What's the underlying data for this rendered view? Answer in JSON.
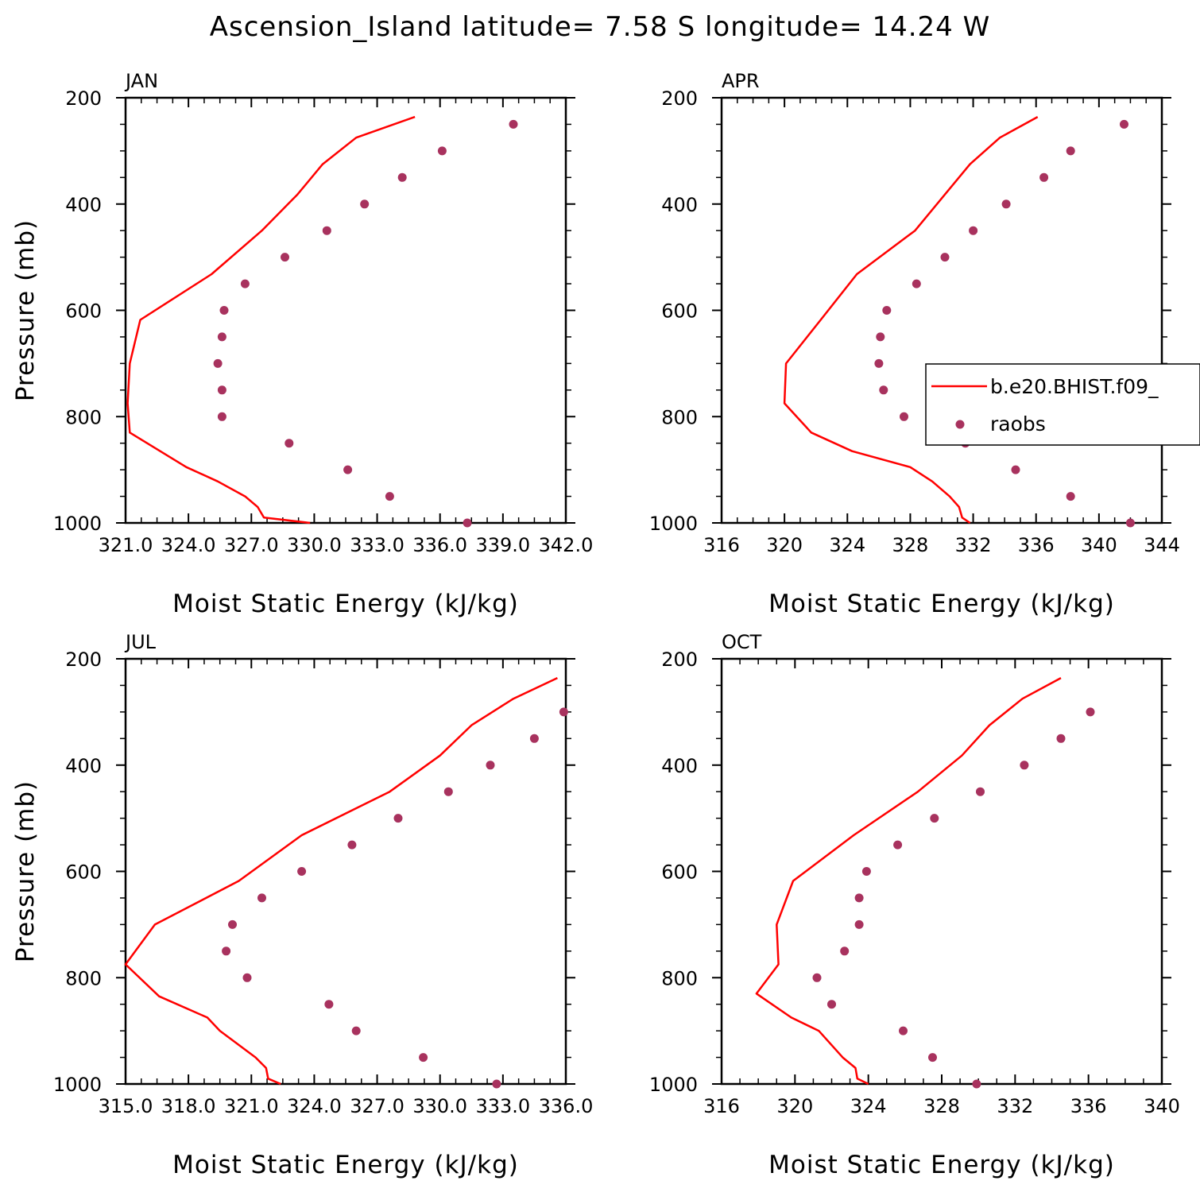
{
  "figure": {
    "title": "Ascension_Island  latitude= 7.58 S longitude= 14.24 W"
  },
  "legend": {
    "entries": [
      {
        "label": "b.e20.BHIST.f09_",
        "kind": "line",
        "color": "#ff0000"
      },
      {
        "label": "raobs",
        "kind": "marker",
        "color": "#a8325e"
      }
    ]
  },
  "colors": {
    "model_line": "#ff0000",
    "raobs_marker": "#a8325e"
  },
  "chart_data": [
    {
      "type": "scatter",
      "panel_label": "JAN",
      "xlabel": "Moist Static Energy (kJ/kg)",
      "ylabel": "Pressure (mb)",
      "xlim": [
        321.0,
        342.0
      ],
      "ylim": [
        1000,
        200
      ],
      "x_ticks": [
        321.0,
        324.0,
        327.0,
        330.0,
        333.0,
        336.0,
        339.0,
        342.0
      ],
      "x_tick_labels": [
        "321.0",
        "324.0",
        "327.0",
        "330.0",
        "333.0",
        "336.0",
        "339.0",
        "342.0"
      ],
      "y_ticks": [
        200,
        400,
        600,
        800,
        1000
      ],
      "y_tick_labels": [
        "200",
        "400",
        "600",
        "800",
        "1000"
      ],
      "series": [
        {
          "name": "b.e20.BHIST.f09_",
          "style": "line",
          "points": [
            [
              334.8,
              236
            ],
            [
              332.0,
              275
            ],
            [
              330.4,
              325
            ],
            [
              329.2,
              382
            ],
            [
              327.5,
              450
            ],
            [
              325.1,
              532
            ],
            [
              321.7,
              618
            ],
            [
              321.2,
              700
            ],
            [
              321.1,
              775
            ],
            [
              321.2,
              830
            ],
            [
              323.9,
              895
            ],
            [
              325.4,
              922
            ],
            [
              326.7,
              950
            ],
            [
              327.3,
              970
            ],
            [
              327.6,
              990
            ],
            [
              329.8,
              1000
            ]
          ]
        },
        {
          "name": "raobs",
          "style": "marker",
          "points": [
            [
              339.5,
              250
            ],
            [
              336.1,
              300
            ],
            [
              334.2,
              350
            ],
            [
              332.4,
              400
            ],
            [
              330.6,
              450
            ],
            [
              328.6,
              500
            ],
            [
              326.7,
              550
            ],
            [
              325.7,
              600
            ],
            [
              325.6,
              650
            ],
            [
              325.4,
              700
            ],
            [
              325.6,
              750
            ],
            [
              325.6,
              800
            ],
            [
              328.8,
              850
            ],
            [
              331.6,
              900
            ],
            [
              333.6,
              950
            ],
            [
              337.3,
              1000
            ]
          ]
        }
      ]
    },
    {
      "type": "scatter",
      "panel_label": "APR",
      "xlabel": "Moist Static Energy (kJ/kg)",
      "ylabel": "",
      "xlim": [
        316,
        344
      ],
      "ylim": [
        1000,
        200
      ],
      "x_ticks": [
        316,
        320,
        324,
        328,
        332,
        336,
        340,
        344
      ],
      "x_tick_labels": [
        "316",
        "320",
        "324",
        "328",
        "332",
        "336",
        "340",
        "344"
      ],
      "y_ticks": [
        200,
        400,
        600,
        800,
        1000
      ],
      "y_tick_labels": [
        "200",
        "400",
        "600",
        "800",
        "1000"
      ],
      "series": [
        {
          "name": "b.e20.BHIST.f09_",
          "style": "line",
          "points": [
            [
              336.1,
              236
            ],
            [
              333.7,
              275
            ],
            [
              331.8,
              325
            ],
            [
              330.2,
              382
            ],
            [
              328.3,
              450
            ],
            [
              324.6,
              532
            ],
            [
              322.3,
              618
            ],
            [
              320.1,
              700
            ],
            [
              320.0,
              775
            ],
            [
              321.7,
              830
            ],
            [
              324.3,
              865
            ],
            [
              328.0,
              895
            ],
            [
              329.4,
              922
            ],
            [
              330.5,
              950
            ],
            [
              331.1,
              970
            ],
            [
              331.3,
              990
            ],
            [
              331.8,
              1000
            ]
          ]
        },
        {
          "name": "raobs",
          "style": "marker",
          "points": [
            [
              341.6,
              250
            ],
            [
              338.2,
              300
            ],
            [
              336.5,
              350
            ],
            [
              334.1,
              400
            ],
            [
              332.0,
              450
            ],
            [
              330.2,
              500
            ],
            [
              328.4,
              550
            ],
            [
              326.5,
              600
            ],
            [
              326.1,
              650
            ],
            [
              326.0,
              700
            ],
            [
              326.3,
              750
            ],
            [
              327.6,
              800
            ],
            [
              331.5,
              850
            ],
            [
              334.7,
              900
            ],
            [
              338.2,
              950
            ],
            [
              342.0,
              1000
            ]
          ]
        }
      ]
    },
    {
      "type": "scatter",
      "panel_label": "JUL",
      "xlabel": "Moist Static Energy (kJ/kg)",
      "ylabel": "Pressure (mb)",
      "xlim": [
        315.0,
        336.0
      ],
      "ylim": [
        1000,
        200
      ],
      "x_ticks": [
        315.0,
        318.0,
        321.0,
        324.0,
        327.0,
        330.0,
        333.0,
        336.0
      ],
      "x_tick_labels": [
        "315.0",
        "318.0",
        "321.0",
        "324.0",
        "327.0",
        "330.0",
        "333.0",
        "336.0"
      ],
      "y_ticks": [
        200,
        400,
        600,
        800,
        1000
      ],
      "y_tick_labels": [
        "200",
        "400",
        "600",
        "800",
        "1000"
      ],
      "series": [
        {
          "name": "b.e20.BHIST.f09_",
          "style": "line",
          "points": [
            [
              335.6,
              236
            ],
            [
              333.5,
              275
            ],
            [
              331.5,
              325
            ],
            [
              330.0,
              382
            ],
            [
              327.6,
              450
            ],
            [
              323.4,
              532
            ],
            [
              320.4,
              618
            ],
            [
              316.4,
              700
            ],
            [
              315.0,
              775
            ],
            [
              316.6,
              835
            ],
            [
              318.9,
              875
            ],
            [
              319.5,
              900
            ],
            [
              321.2,
              950
            ],
            [
              321.7,
              970
            ],
            [
              321.8,
              990
            ],
            [
              322.4,
              1000
            ]
          ]
        },
        {
          "name": "raobs",
          "style": "marker",
          "points": [
            [
              335.9,
              300
            ],
            [
              334.5,
              350
            ],
            [
              332.4,
              400
            ],
            [
              330.4,
              450
            ],
            [
              328.0,
              500
            ],
            [
              325.8,
              550
            ],
            [
              323.4,
              600
            ],
            [
              321.5,
              650
            ],
            [
              320.1,
              700
            ],
            [
              319.8,
              750
            ],
            [
              320.8,
              800
            ],
            [
              324.7,
              850
            ],
            [
              326.0,
              900
            ],
            [
              329.2,
              950
            ],
            [
              332.7,
              1000
            ]
          ]
        }
      ]
    },
    {
      "type": "scatter",
      "panel_label": "OCT",
      "xlabel": "Moist Static Energy (kJ/kg)",
      "ylabel": "",
      "xlim": [
        316,
        340
      ],
      "ylim": [
        1000,
        200
      ],
      "x_ticks": [
        316,
        320,
        324,
        328,
        332,
        336,
        340
      ],
      "x_tick_labels": [
        "316",
        "320",
        "324",
        "328",
        "332",
        "336",
        "340"
      ],
      "y_ticks": [
        200,
        400,
        600,
        800,
        1000
      ],
      "y_tick_labels": [
        "200",
        "400",
        "600",
        "800",
        "1000"
      ],
      "series": [
        {
          "name": "b.e20.BHIST.f09_",
          "style": "line",
          "points": [
            [
              334.5,
              236
            ],
            [
              332.4,
              275
            ],
            [
              330.6,
              325
            ],
            [
              329.1,
              382
            ],
            [
              326.7,
              450
            ],
            [
              323.2,
              532
            ],
            [
              319.9,
              618
            ],
            [
              319.0,
              700
            ],
            [
              319.1,
              775
            ],
            [
              317.9,
              830
            ],
            [
              319.8,
              875
            ],
            [
              321.3,
              900
            ],
            [
              322.6,
              950
            ],
            [
              323.3,
              970
            ],
            [
              323.4,
              990
            ],
            [
              324.0,
              1000
            ]
          ]
        },
        {
          "name": "raobs",
          "style": "marker",
          "points": [
            [
              336.1,
              300
            ],
            [
              334.5,
              350
            ],
            [
              332.5,
              400
            ],
            [
              330.1,
              450
            ],
            [
              327.6,
              500
            ],
            [
              325.6,
              550
            ],
            [
              323.9,
              600
            ],
            [
              323.5,
              650
            ],
            [
              323.5,
              700
            ],
            [
              322.7,
              750
            ],
            [
              321.2,
              800
            ],
            [
              322.0,
              850
            ],
            [
              325.9,
              900
            ],
            [
              327.5,
              950
            ],
            [
              329.9,
              1000
            ]
          ]
        }
      ]
    }
  ]
}
